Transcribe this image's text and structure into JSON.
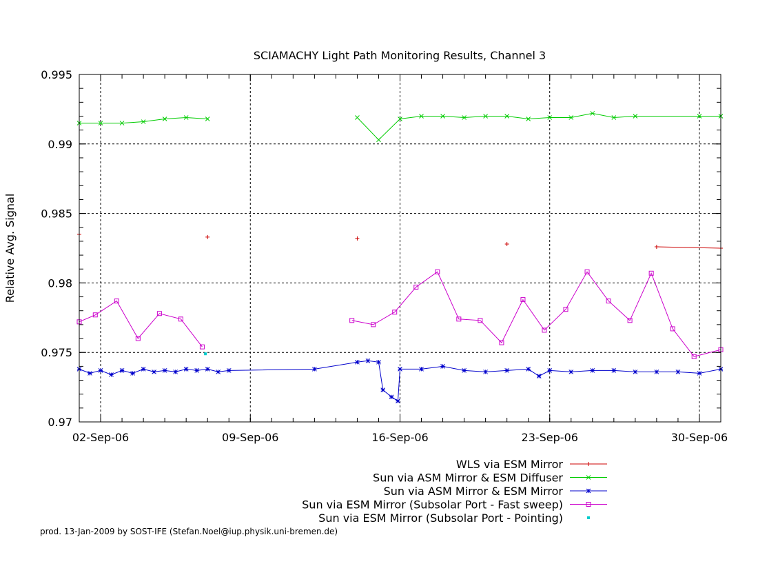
{
  "chart_data": {
    "type": "line",
    "title": "SCIAMACHY Light Path Monitoring Results, Channel 3",
    "xlabel": "",
    "ylabel": "Relative Avg. Signal",
    "xlim": [
      "2006-09-01",
      "2006-10-01"
    ],
    "ylim": [
      0.97,
      0.995
    ],
    "x_ticks": [
      "02-Sep-06",
      "09-Sep-06",
      "16-Sep-06",
      "23-Sep-06",
      "30-Sep-06"
    ],
    "y_ticks": [
      "0.97",
      "0.975",
      "0.98",
      "0.985",
      "0.99",
      "0.995"
    ],
    "grid": true,
    "legend_position": "bottom-right",
    "series": [
      {
        "name": "WLS via ESM Mirror",
        "color": "#cc0000",
        "marker": "plus",
        "x": [
          "2006-09-01",
          "2006-09-07",
          "2006-09-14",
          "2006-09-21",
          "2006-09-28",
          "2006-10-01"
        ],
        "y": [
          0.9835,
          0.9833,
          0.9832,
          0.9828,
          0.9826,
          0.9825
        ]
      },
      {
        "name": "Sun via ASM Mirror & ESM Diffuser",
        "color": "#00cc00",
        "marker": "x",
        "x": [
          "2006-09-01",
          "2006-09-02",
          "2006-09-03",
          "2006-09-04",
          "2006-09-05",
          "2006-09-06",
          "2006-09-07",
          "2006-09-14",
          "2006-09-15",
          "2006-09-16",
          "2006-09-17",
          "2006-09-18",
          "2006-09-19",
          "2006-09-20",
          "2006-09-21",
          "2006-09-22",
          "2006-09-23",
          "2006-09-24",
          "2006-09-25",
          "2006-09-26",
          "2006-09-27",
          "2006-09-30",
          "2006-10-01"
        ],
        "y": [
          0.9915,
          0.9915,
          0.9915,
          0.9916,
          0.9918,
          0.9919,
          0.9918,
          0.9919,
          0.9903,
          0.9918,
          0.992,
          0.992,
          0.9919,
          0.992,
          0.992,
          0.9918,
          0.9919,
          0.9919,
          0.9922,
          0.9919,
          0.992,
          0.992,
          0.992
        ]
      },
      {
        "name": "Sun via ASM Mirror & ESM Mirror",
        "color": "#0000cc",
        "marker": "star",
        "x": [
          "2006-09-01",
          "2006-09-01.5",
          "2006-09-02",
          "2006-09-02.5",
          "2006-09-03",
          "2006-09-03.5",
          "2006-09-04",
          "2006-09-04.5",
          "2006-09-05",
          "2006-09-05.5",
          "2006-09-06",
          "2006-09-06.5",
          "2006-09-07",
          "2006-09-07.5",
          "2006-09-08",
          "2006-09-12",
          "2006-09-14",
          "2006-09-14.5",
          "2006-09-15",
          "2006-09-15.2",
          "2006-09-15.6",
          "2006-09-15.9",
          "2006-09-16",
          "2006-09-17",
          "2006-09-18",
          "2006-09-19",
          "2006-09-20",
          "2006-09-21",
          "2006-09-22",
          "2006-09-22.5",
          "2006-09-23",
          "2006-09-24",
          "2006-09-25",
          "2006-09-26",
          "2006-09-27",
          "2006-09-28",
          "2006-09-29",
          "2006-09-30",
          "2006-10-01"
        ],
        "y": [
          0.9738,
          0.9735,
          0.9737,
          0.9734,
          0.9737,
          0.9735,
          0.9738,
          0.9736,
          0.9737,
          0.9736,
          0.9738,
          0.9737,
          0.9738,
          0.9736,
          0.9737,
          0.9738,
          0.9743,
          0.9744,
          0.9743,
          0.9723,
          0.9718,
          0.9715,
          0.9738,
          0.9738,
          0.974,
          0.9737,
          0.9736,
          0.9737,
          0.9738,
          0.9733,
          0.9737,
          0.9736,
          0.9737,
          0.9737,
          0.9736,
          0.9736,
          0.9736,
          0.9735,
          0.9738
        ]
      },
      {
        "name": "Sun via ESM Mirror (Subsolar Port - Fast sweep)",
        "color": "#cc00cc",
        "marker": "square",
        "x": [
          "2006-09-01",
          "2006-09-01.75",
          "2006-09-02.75",
          "2006-09-03.75",
          "2006-09-04.75",
          "2006-09-05.75",
          "2006-09-06.75",
          "2006-09-13.75",
          "2006-09-14.75",
          "2006-09-15.75",
          "2006-09-16.75",
          "2006-09-17.75",
          "2006-09-18.75",
          "2006-09-19.75",
          "2006-09-20.75",
          "2006-09-21.75",
          "2006-09-22.75",
          "2006-09-23.75",
          "2006-09-24.75",
          "2006-09-25.75",
          "2006-09-26.75",
          "2006-09-27.75",
          "2006-09-28.75",
          "2006-09-29.75",
          "2006-10-01"
        ],
        "y": [
          0.9772,
          0.9777,
          0.9787,
          0.976,
          0.9778,
          0.9774,
          0.9754,
          0.9773,
          0.977,
          0.9779,
          0.9797,
          0.9808,
          0.9774,
          0.9773,
          0.9757,
          0.9788,
          0.9766,
          0.9781,
          0.9808,
          0.9787,
          0.9773,
          0.9807,
          0.9767,
          0.9747,
          0.9752
        ]
      },
      {
        "name": "Sun via ESM Mirror (Subsolar Port - Pointing)",
        "color": "#00cccc",
        "marker": "dot",
        "x": [
          "2006-09-06.9"
        ],
        "y": [
          0.9749
        ]
      }
    ]
  },
  "footer": {
    "credit": "prod. 13-Jan-2009 by SOST-IFE (Stefan.Noel@iup.physik.uni-bremen.de)"
  }
}
